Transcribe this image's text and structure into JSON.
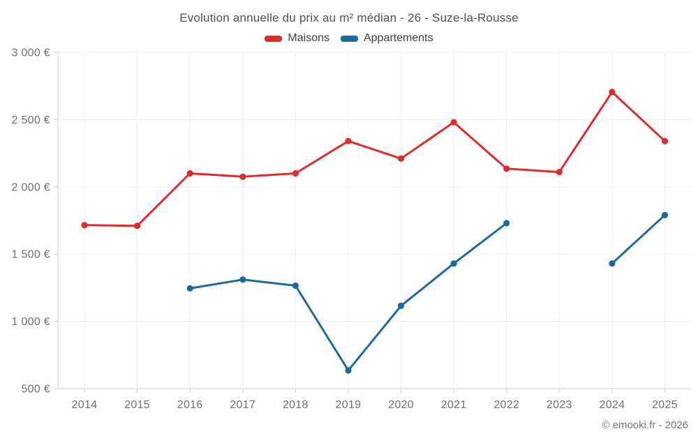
{
  "title": "Evolution annuelle du prix au m² médian - 26 - Suze-la-Rousse",
  "copyright": "© emooki.fr - 2026",
  "chart_data": {
    "type": "line",
    "title": "Evolution annuelle du prix au m² médian - 26 - Suze-la-Rousse",
    "xlabel": "",
    "ylabel": "",
    "categories": [
      "2014",
      "2015",
      "2016",
      "2017",
      "2018",
      "2019",
      "2020",
      "2021",
      "2022",
      "2023",
      "2024",
      "2025"
    ],
    "series": [
      {
        "name": "Maisons",
        "color": "#e02b2b",
        "values": [
          1715,
          1710,
          2100,
          2075,
          2100,
          2340,
          2210,
          2480,
          2135,
          2110,
          2705,
          2340
        ]
      },
      {
        "name": "Appartements",
        "color": "#1a6a9f",
        "values": [
          null,
          null,
          1245,
          1310,
          1265,
          635,
          1115,
          1430,
          1730,
          null,
          1430,
          1790
        ]
      }
    ],
    "ylim": [
      500,
      3000
    ],
    "y_ticks": [
      {
        "value": 500,
        "label": "500 €"
      },
      {
        "value": 1000,
        "label": "1 000 €"
      },
      {
        "value": 1500,
        "label": "1 500 €"
      },
      {
        "value": 2000,
        "label": "2 000 €"
      },
      {
        "value": 2500,
        "label": "2 500 €"
      },
      {
        "value": 3000,
        "label": "3 000 €"
      }
    ],
    "grid": true,
    "legend_position": "top"
  }
}
